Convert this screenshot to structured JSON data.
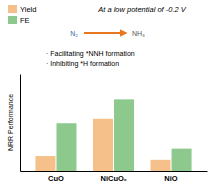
{
  "chart_data": {
    "type": "bar",
    "title": "At a low potential of -0.2 V",
    "categories": [
      "CuO",
      "NiCuOₓ",
      "NiO"
    ],
    "series": [
      {
        "name": "Yield",
        "color": "#F5C08A",
        "values": [
          1.0,
          3.5,
          0.75
        ]
      },
      {
        "name": "FE",
        "color": "#8DC98D",
        "values": [
          3.2,
          4.8,
          1.5
        ]
      }
    ],
    "ylabel": "NRR Performance",
    "ylim": [
      0,
      6.5
    ],
    "tick_labels": "x",
    "legend": "upper left",
    "annotations": [
      "· Facilitating *NNH formation",
      "· Inhibiting *H formation",
      "N₂",
      "NH₃"
    ]
  }
}
